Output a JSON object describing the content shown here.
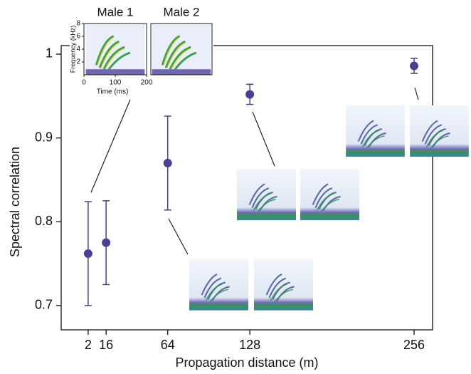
{
  "chart_data": {
    "type": "scatter",
    "x_label": "Propagation distance (m)",
    "y_label": "Spectral correlation",
    "x": [
      2,
      16,
      64,
      128,
      256
    ],
    "values": [
      0.762,
      0.775,
      0.87,
      0.952,
      0.986
    ],
    "errors": [
      0.062,
      0.05,
      0.056,
      0.012,
      0.009
    ],
    "color": "#4a3f96",
    "xlim": [
      -19,
      270.4
    ],
    "ylim": [
      0.671,
      1.0102
    ],
    "xticks": [
      2,
      16,
      64,
      128,
      256
    ],
    "yticks": [
      0.7,
      0.8,
      0.9,
      1
    ],
    "inset": {
      "titles": [
        "Male 1",
        "Male 2"
      ],
      "x_label": "Time (ms)",
      "y_label": "Frequency (kHz)",
      "xlim": [
        0,
        200
      ],
      "ylim": [
        0,
        8
      ],
      "xticks": [
        0,
        100,
        200
      ],
      "yticks": [
        2,
        4,
        6,
        8
      ]
    }
  }
}
